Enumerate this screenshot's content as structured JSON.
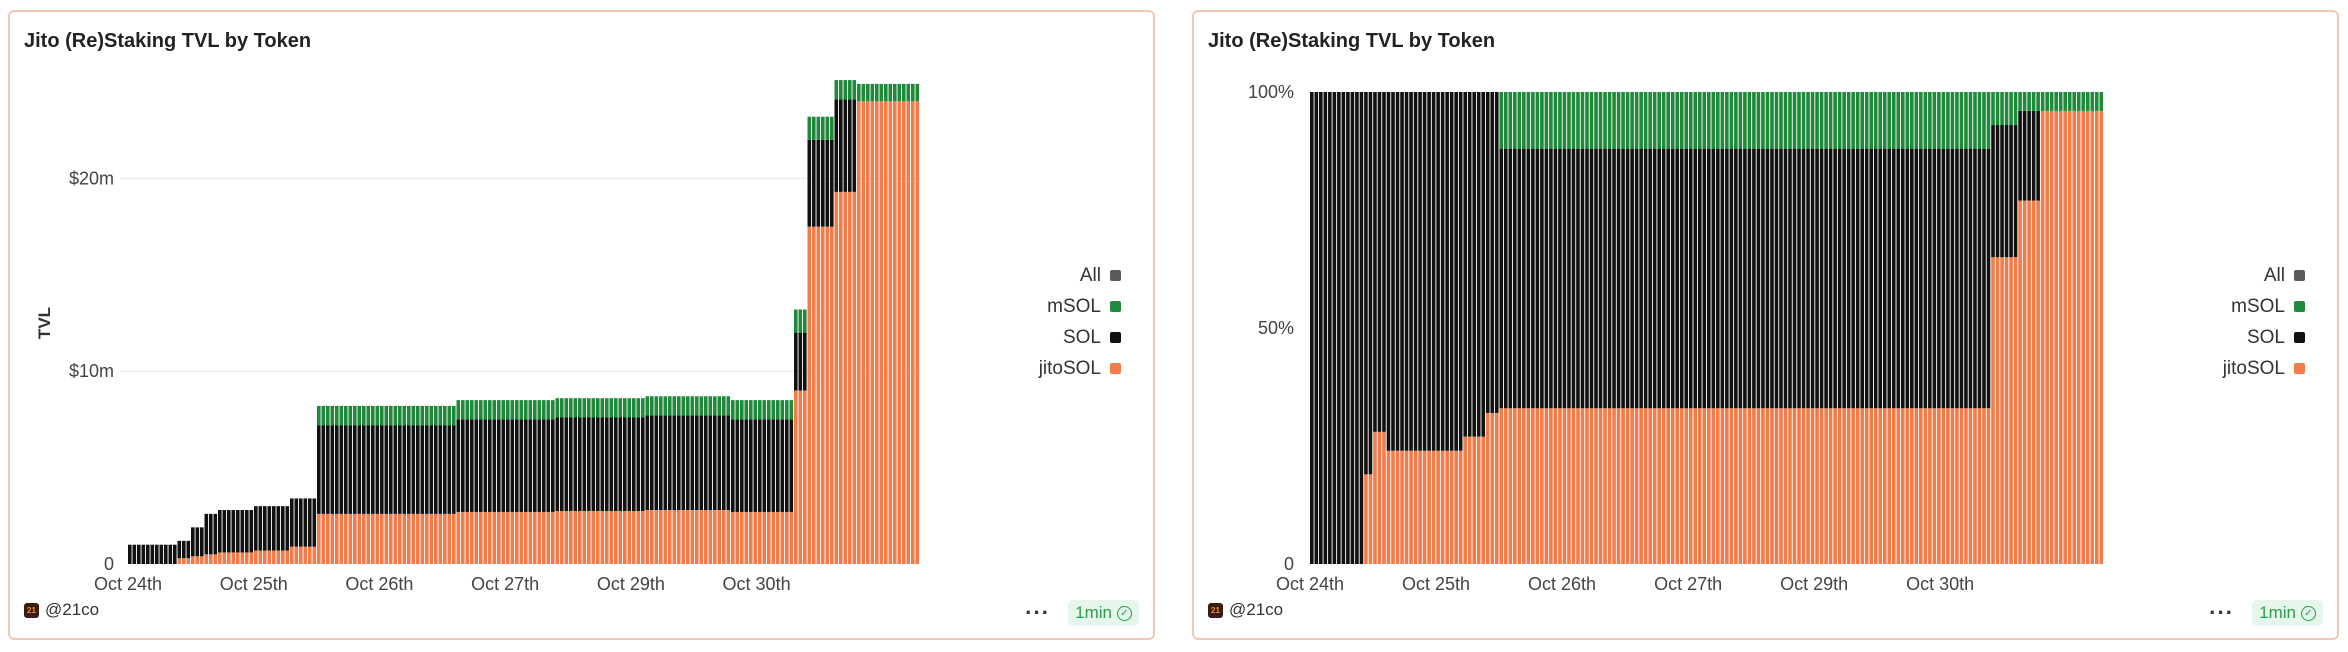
{
  "panels": [
    {
      "title": "Jito (Re)Staking TVL by Token",
      "legend": [
        {
          "label": "All",
          "color": "#5a5a5a"
        },
        {
          "label": "mSOL",
          "color": "#1f8a3a"
        },
        {
          "label": "SOL",
          "color": "#111111"
        },
        {
          "label": "jitoSOL",
          "color": "#f47c4a"
        }
      ],
      "footer": {
        "author": "@21co",
        "refresh": "1min",
        "menu": "···"
      }
    },
    {
      "title": "Jito (Re)Staking TVL by Token",
      "legend": [
        {
          "label": "All",
          "color": "#5a5a5a"
        },
        {
          "label": "mSOL",
          "color": "#1f8a3a"
        },
        {
          "label": "SOL",
          "color": "#111111"
        },
        {
          "label": "jitoSOL",
          "color": "#f47c4a"
        }
      ],
      "footer": {
        "author": "@21co",
        "refresh": "1min",
        "menu": "···"
      }
    }
  ],
  "chart_data": [
    {
      "type": "bar",
      "stacked": true,
      "title": "Jito (Re)Staking TVL by Token",
      "ylabel": "TVL",
      "xlabel": "",
      "ylim": [
        0,
        25000000
      ],
      "yticks": [
        {
          "value": 0,
          "label": "0"
        },
        {
          "value": 10000000,
          "label": "$10m"
        },
        {
          "value": 20000000,
          "label": "$20m"
        }
      ],
      "xticks": [
        {
          "day": 0,
          "label": "Oct 24th"
        },
        {
          "day": 1,
          "label": "Oct 25th"
        },
        {
          "day": 2,
          "label": "Oct 26th"
        },
        {
          "day": 3,
          "label": "Oct 27th"
        },
        {
          "day": 4,
          "label": "Oct 29th"
        },
        {
          "day": 5,
          "label": "Oct 30th"
        }
      ],
      "x_range": [
        0,
        6.3
      ],
      "grid": "horizontal",
      "legend_position": "right",
      "series_order": [
        "jitoSOL",
        "SOL",
        "mSOL"
      ],
      "colors": {
        "jitoSOL": "#f47c4a",
        "SOL": "#111111",
        "mSOL": "#1f8a3a"
      },
      "breakpoints": [
        {
          "x": 0.0,
          "jitoSOL": 0,
          "SOL": 1000000,
          "mSOL": 0
        },
        {
          "x": 0.4,
          "jitoSOL": 300000,
          "SOL": 900000,
          "mSOL": 0
        },
        {
          "x": 0.5,
          "jitoSOL": 400000,
          "SOL": 1500000,
          "mSOL": 0
        },
        {
          "x": 0.6,
          "jitoSOL": 500000,
          "SOL": 2100000,
          "mSOL": 0
        },
        {
          "x": 0.7,
          "jitoSOL": 600000,
          "SOL": 2200000,
          "mSOL": 0
        },
        {
          "x": 1.0,
          "jitoSOL": 700000,
          "SOL": 2300000,
          "mSOL": 0
        },
        {
          "x": 1.3,
          "jitoSOL": 900000,
          "SOL": 2500000,
          "mSOL": 0
        },
        {
          "x": 1.5,
          "jitoSOL": 2600000,
          "SOL": 4600000,
          "mSOL": 1000000
        },
        {
          "x": 2.6,
          "jitoSOL": 2700000,
          "SOL": 4800000,
          "mSOL": 1000000
        },
        {
          "x": 3.4,
          "jitoSOL": 2750000,
          "SOL": 4850000,
          "mSOL": 1000000
        },
        {
          "x": 4.1,
          "jitoSOL": 2800000,
          "SOL": 4900000,
          "mSOL": 1000000
        },
        {
          "x": 4.8,
          "jitoSOL": 2700000,
          "SOL": 4800000,
          "mSOL": 1000000
        },
        {
          "x": 5.3,
          "jitoSOL": 9000000,
          "SOL": 3000000,
          "mSOL": 1200000
        },
        {
          "x": 5.4,
          "jitoSOL": 17500000,
          "SOL": 4500000,
          "mSOL": 1200000
        },
        {
          "x": 5.6,
          "jitoSOL": 19300000,
          "SOL": 4800000,
          "mSOL": 1000000
        },
        {
          "x": 5.8,
          "jitoSOL": 24000000,
          "SOL": 0,
          "mSOL": 900000
        },
        {
          "x": 6.3,
          "jitoSOL": 24000000,
          "SOL": 0,
          "mSOL": 900000
        }
      ]
    },
    {
      "type": "bar",
      "stacked": true,
      "normalized": true,
      "title": "Jito (Re)Staking TVL by Token",
      "ylabel": "",
      "xlabel": "",
      "ylim": [
        0,
        100
      ],
      "yticks": [
        {
          "value": 0,
          "label": "0"
        },
        {
          "value": 50,
          "label": "50%"
        },
        {
          "value": 100,
          "label": "100%"
        }
      ],
      "xticks": [
        {
          "day": 0,
          "label": "Oct 24th"
        },
        {
          "day": 1,
          "label": "Oct 25th"
        },
        {
          "day": 2,
          "label": "Oct 26th"
        },
        {
          "day": 3,
          "label": "Oct 27th"
        },
        {
          "day": 4,
          "label": "Oct 29th"
        },
        {
          "day": 5,
          "label": "Oct 30th"
        }
      ],
      "x_range": [
        0,
        6.3
      ],
      "grid": "none",
      "legend_position": "right",
      "series_order": [
        "jitoSOL",
        "SOL",
        "mSOL"
      ],
      "colors": {
        "jitoSOL": "#f47c4a",
        "SOL": "#111111",
        "mSOL": "#1f8a3a"
      },
      "breakpoints": [
        {
          "x": 0.0,
          "jitoSOL": 0,
          "SOL": 100,
          "mSOL": 0
        },
        {
          "x": 0.42,
          "jitoSOL": 19,
          "SOL": 81,
          "mSOL": 0
        },
        {
          "x": 0.5,
          "jitoSOL": 28,
          "SOL": 72,
          "mSOL": 0
        },
        {
          "x": 0.6,
          "jitoSOL": 24,
          "SOL": 76,
          "mSOL": 0
        },
        {
          "x": 1.0,
          "jitoSOL": 24,
          "SOL": 76,
          "mSOL": 0
        },
        {
          "x": 1.2,
          "jitoSOL": 27,
          "SOL": 73,
          "mSOL": 0
        },
        {
          "x": 1.4,
          "jitoSOL": 32,
          "SOL": 68,
          "mSOL": 0
        },
        {
          "x": 1.5,
          "jitoSOL": 33,
          "SOL": 55,
          "mSOL": 12
        },
        {
          "x": 5.3,
          "jitoSOL": 33,
          "SOL": 55,
          "mSOL": 12
        },
        {
          "x": 5.4,
          "jitoSOL": 65,
          "SOL": 28,
          "mSOL": 7
        },
        {
          "x": 5.6,
          "jitoSOL": 77,
          "SOL": 19,
          "mSOL": 4
        },
        {
          "x": 5.8,
          "jitoSOL": 96,
          "SOL": 0,
          "mSOL": 4
        },
        {
          "x": 6.3,
          "jitoSOL": 96,
          "SOL": 0,
          "mSOL": 4
        }
      ]
    }
  ]
}
